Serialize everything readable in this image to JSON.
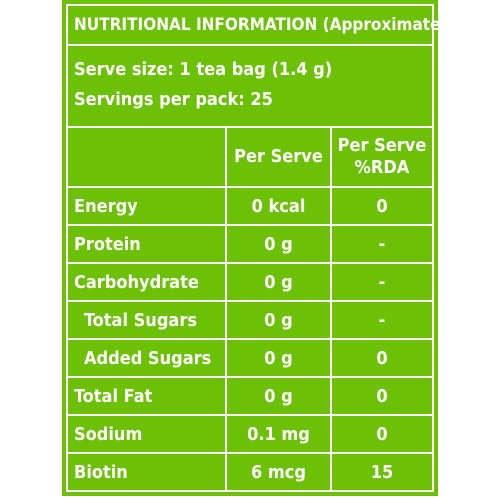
{
  "title": "NUTRITIONAL INFORMATION (Approximate values)",
  "serve_size": "Serve size: 1 tea bag (1.4 g)",
  "servings": "Servings per pack: 25",
  "headers": {
    "nutrient": "",
    "per_serve": "Per Serve",
    "rda_line1": "Per Serve",
    "rda_line2": "%RDA"
  },
  "rows": [
    {
      "label": "Energy",
      "value": "0 kcal",
      "rda": "0"
    },
    {
      "label": "Protein",
      "value": "0 g",
      "rda": "-"
    },
    {
      "label": "Carbohydrate",
      "value": "0 g",
      "rda": "-"
    },
    {
      "label": "Total Sugars",
      "value": "0 g",
      "rda": "-"
    },
    {
      "label": "Added Sugars",
      "value": "0 g",
      "rda": "0"
    },
    {
      "label": "Total Fat",
      "value": "0 g",
      "rda": "0"
    },
    {
      "label": "Sodium",
      "value": "0.1 mg",
      "rda": "0"
    },
    {
      "label": "Biotin",
      "value": "6 mcg",
      "rda": "15"
    }
  ],
  "colors": {
    "panel_background": "#6cc107",
    "text_and_lines": "#ffffff"
  }
}
